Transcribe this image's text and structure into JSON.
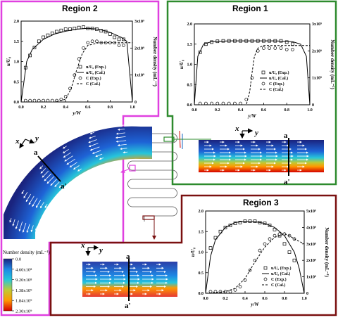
{
  "regions": [
    {
      "title": "Region 2",
      "frame_color": "#e040e0"
    },
    {
      "title": "Region 1",
      "frame_color": "#2e8b2e"
    },
    {
      "title": "Region 3",
      "frame_color": "#7a1010"
    }
  ],
  "axis": {
    "xlabel": "y/W",
    "ylabel": "u/U₀",
    "ylabel_right": "Number density (mL⁻¹)",
    "x_ticks": [
      "0.0",
      "0.2",
      "0.4",
      "0.6",
      "0.8",
      "1.0"
    ],
    "y_ticks": [
      "0.0",
      "0.5",
      "1.0",
      "1.5",
      "2.0"
    ],
    "y2_ticks_r2": [
      "0",
      "1x10⁹",
      "2x10⁹",
      "3x10⁹"
    ],
    "y2_ticks_r1": [
      "0",
      "1x10⁹",
      "2x10⁹",
      "3x10⁹"
    ],
    "y2_ticks_r3": [
      "0",
      "1x10⁹",
      "2x10⁹",
      "3x10⁹",
      "4x10⁹",
      "5x10⁹"
    ]
  },
  "legend": [
    {
      "label": "u/U₀ (Exp.)",
      "marker": "square"
    },
    {
      "label": "u/U₀ (Cal.)",
      "marker": "solid"
    },
    {
      "label": "C (Exp.)",
      "marker": "circle"
    },
    {
      "label": "C (Cal.)",
      "marker": "dashed"
    }
  ],
  "cross_section": {
    "x_label": "x",
    "y_label": "y",
    "a_label": "a",
    "a_prime_label": "a'"
  },
  "colorbar": {
    "title": "Number density (mL⁻¹)",
    "ticks": [
      "0.0",
      "4.60x10⁸",
      "9.20x10⁸",
      "1.38x10⁹",
      "1.84x10⁹",
      "2.30x10⁹"
    ],
    "colors": [
      "#1a237e",
      "#1e88e5",
      "#26c6da",
      "#c0ca33",
      "#ff9800",
      "#d50000"
    ]
  },
  "chart_data": [
    {
      "type": "scatter",
      "title": "Region 2",
      "xlabel": "y/W",
      "ylabel": "u/U₀",
      "ylabel_right": "Number density (mL⁻¹)",
      "xlim": [
        0,
        1
      ],
      "ylim": [
        0,
        2.0
      ],
      "y2lim": [
        0,
        3000000000.0
      ],
      "series": [
        {
          "name": "u/U₀ (Exp.)",
          "axis": "left",
          "x": [
            0.04,
            0.08,
            0.12,
            0.16,
            0.2,
            0.24,
            0.28,
            0.32,
            0.36,
            0.4,
            0.44,
            0.48,
            0.52,
            0.56,
            0.6,
            0.64,
            0.68,
            0.72,
            0.76,
            0.8,
            0.84,
            0.88,
            0.92
          ],
          "y": [
            0.85,
            1.15,
            1.35,
            1.5,
            1.6,
            1.65,
            1.7,
            1.74,
            1.77,
            1.8,
            1.8,
            1.82,
            1.84,
            1.85,
            1.82,
            1.82,
            1.8,
            1.76,
            1.74,
            1.68,
            1.6,
            1.55,
            1.55
          ]
        },
        {
          "name": "u/U₀ (Cal.)",
          "axis": "left",
          "x": [
            0.0,
            0.05,
            0.1,
            0.2,
            0.3,
            0.4,
            0.5,
            0.6,
            0.7,
            0.8,
            0.9,
            0.95,
            1.0
          ],
          "y": [
            0,
            1.0,
            1.3,
            1.55,
            1.68,
            1.75,
            1.8,
            1.82,
            1.8,
            1.72,
            1.6,
            1.5,
            0
          ]
        },
        {
          "name": "C (Exp.)",
          "axis": "right",
          "x": [
            0.04,
            0.08,
            0.12,
            0.16,
            0.2,
            0.24,
            0.28,
            0.32,
            0.36,
            0.4,
            0.44,
            0.48,
            0.52,
            0.56,
            0.6,
            0.64,
            0.68,
            0.72,
            0.76,
            0.8,
            0.84,
            0.88,
            0.92
          ],
          "y": [
            50000000.0,
            50000000.0,
            50000000.0,
            50000000.0,
            50000000.0,
            50000000.0,
            50000000.0,
            50000000.0,
            100000000.0,
            200000000.0,
            500000000.0,
            1000000000.0,
            1600000000.0,
            2000000000.0,
            2200000000.0,
            2250000000.0,
            2250000000.0,
            2200000000.0,
            2200000000.0,
            2200000000.0,
            2200000000.0,
            2100000000.0,
            2100000000.0
          ]
        },
        {
          "name": "C (Cal.)",
          "axis": "right",
          "x": [
            0.0,
            0.3,
            0.4,
            0.45,
            0.5,
            0.55,
            0.6,
            0.7,
            0.8,
            0.9,
            1.0
          ],
          "y": [
            0,
            0,
            100000000.0,
            500000000.0,
            1200000000.0,
            1800000000.0,
            2100000000.0,
            2200000000.0,
            2200000000.0,
            2200000000.0,
            2200000000.0
          ]
        }
      ]
    },
    {
      "type": "scatter",
      "title": "Region 1",
      "xlabel": "y/W",
      "ylabel": "u/U₀",
      "ylabel_right": "Number density (mL⁻¹)",
      "xlim": [
        0,
        1
      ],
      "ylim": [
        0,
        2.0
      ],
      "y2lim": [
        0,
        3000000000.0
      ],
      "series": [
        {
          "name": "u/U₀ (Exp.)",
          "axis": "left",
          "x": [
            0.05,
            0.1,
            0.15,
            0.2,
            0.25,
            0.3,
            0.35,
            0.4,
            0.45,
            0.5,
            0.55,
            0.6,
            0.65,
            0.7,
            0.75,
            0.8,
            0.85
          ],
          "y": [
            1.3,
            1.5,
            1.55,
            1.57,
            1.58,
            1.58,
            1.58,
            1.58,
            1.58,
            1.58,
            1.58,
            1.58,
            1.58,
            1.58,
            1.58,
            1.55,
            1.5
          ]
        },
        {
          "name": "u/U₀ (Cal.)",
          "axis": "left",
          "x": [
            0.0,
            0.03,
            0.08,
            0.15,
            0.3,
            0.5,
            0.7,
            0.85,
            0.92,
            0.97,
            1.0
          ],
          "y": [
            0,
            1.2,
            1.5,
            1.56,
            1.58,
            1.58,
            1.58,
            1.56,
            1.5,
            1.2,
            0
          ]
        },
        {
          "name": "C (Exp.)",
          "axis": "right",
          "x": [
            0.05,
            0.1,
            0.15,
            0.2,
            0.25,
            0.3,
            0.35,
            0.4,
            0.45,
            0.5,
            0.55,
            0.6,
            0.65,
            0.7,
            0.75,
            0.8,
            0.85
          ],
          "y": [
            50000000.0,
            50000000.0,
            50000000.0,
            50000000.0,
            50000000.0,
            50000000.0,
            50000000.0,
            50000000.0,
            200000000.0,
            1000000000.0,
            2000000000.0,
            2100000000.0,
            2100000000.0,
            2100000000.0,
            2100000000.0,
            2050000000.0,
            2050000000.0
          ]
        },
        {
          "name": "C (Cal.)",
          "axis": "right",
          "x": [
            0.0,
            0.45,
            0.48,
            0.5,
            0.52,
            0.55,
            0.6,
            1.0
          ],
          "y": [
            0,
            0,
            500000000.0,
            1200000000.0,
            1800000000.0,
            2100000000.0,
            2200000000.0,
            2200000000.0
          ]
        }
      ]
    },
    {
      "type": "scatter",
      "title": "Region 3",
      "xlabel": "y/W",
      "ylabel": "u/U₀",
      "ylabel_right": "Number density (mL⁻¹)",
      "xlim": [
        0,
        1
      ],
      "ylim": [
        0,
        2.0
      ],
      "y2lim": [
        0,
        5000000000.0
      ],
      "series": [
        {
          "name": "u/U₀ (Exp.)",
          "axis": "left",
          "x": [
            0.05,
            0.1,
            0.15,
            0.2,
            0.25,
            0.3,
            0.35,
            0.4,
            0.45,
            0.5,
            0.55,
            0.6,
            0.65,
            0.7,
            0.75,
            0.8,
            0.85,
            0.9
          ],
          "y": [
            1.1,
            1.35,
            1.5,
            1.6,
            1.65,
            1.7,
            1.72,
            1.75,
            1.75,
            1.75,
            1.72,
            1.7,
            1.65,
            1.55,
            1.4,
            1.2,
            1.0,
            0.8
          ]
        },
        {
          "name": "u/U₀ (Cal.)",
          "axis": "left",
          "x": [
            0.0,
            0.05,
            0.1,
            0.2,
            0.3,
            0.4,
            0.5,
            0.6,
            0.7,
            0.8,
            0.9,
            0.95,
            1.0
          ],
          "y": [
            0,
            0.9,
            1.3,
            1.6,
            1.72,
            1.75,
            1.74,
            1.7,
            1.6,
            1.4,
            1.0,
            0.6,
            0
          ]
        },
        {
          "name": "C (Exp.)",
          "axis": "right",
          "x": [
            0.05,
            0.1,
            0.15,
            0.2,
            0.25,
            0.3,
            0.35,
            0.4,
            0.45,
            0.5,
            0.55,
            0.6,
            0.65,
            0.7,
            0.75,
            0.8,
            0.85,
            0.9
          ],
          "y": [
            100000000.0,
            100000000.0,
            100000000.0,
            100000000.0,
            100000000.0,
            200000000.0,
            400000000.0,
            800000000.0,
            1400000000.0,
            2000000000.0,
            2600000000.0,
            3000000000.0,
            3300000000.0,
            3500000000.0,
            3600000000.0,
            3600000000.0,
            3500000000.0,
            3300000000.0
          ]
        },
        {
          "name": "C (Cal.)",
          "axis": "right",
          "x": [
            0.0,
            0.2,
            0.3,
            0.4,
            0.5,
            0.6,
            0.7,
            0.8,
            0.85,
            0.9,
            1.0
          ],
          "y": [
            0,
            100000000.0,
            300000000.0,
            900000000.0,
            1900000000.0,
            2800000000.0,
            3400000000.0,
            3600000000.0,
            3500000000.0,
            3300000000.0,
            3000000000.0
          ]
        }
      ]
    }
  ]
}
